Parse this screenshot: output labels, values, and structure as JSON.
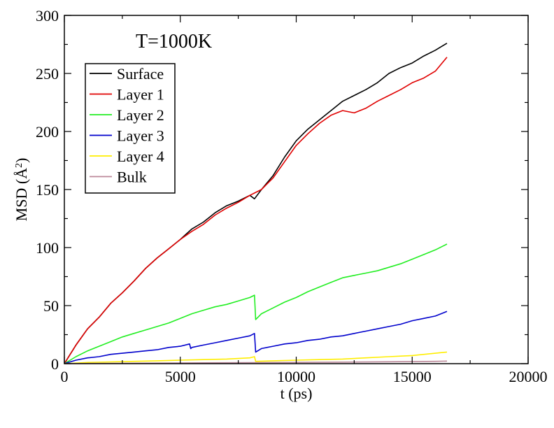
{
  "chart_data": {
    "type": "line",
    "annotation": "T=1000K",
    "xlabel": "t (ps)",
    "ylabel": "MSD (Å²)",
    "ylabel_base": "MSD (",
    "ylabel_unit": "Å",
    "ylabel_exp": "2",
    "ylabel_close": ")",
    "xlim": [
      0,
      20000
    ],
    "ylim": [
      0,
      300
    ],
    "xticks": [
      0,
      5000,
      10000,
      15000,
      20000
    ],
    "xtick_labels": [
      "0",
      "5000",
      "10000",
      "15000",
      "20000"
    ],
    "yticks": [
      0,
      50,
      100,
      150,
      200,
      250,
      300
    ],
    "ytick_labels": [
      "0",
      "50",
      "100",
      "150",
      "200",
      "250",
      "300"
    ],
    "grid": false,
    "legend_position": "top-left",
    "series": [
      {
        "name": "Surface",
        "color": "#000000",
        "x": [
          0,
          500,
          1000,
          1500,
          2000,
          2500,
          3000,
          3500,
          4000,
          4500,
          5000,
          5500,
          6000,
          6500,
          7000,
          7500,
          8000,
          8200,
          8500,
          9000,
          9500,
          10000,
          10500,
          11000,
          11500,
          12000,
          12500,
          13000,
          13500,
          14000,
          14500,
          15000,
          15500,
          16000,
          16500
        ],
        "y": [
          0,
          16,
          30,
          40,
          52,
          61,
          71,
          82,
          91,
          99,
          107,
          116,
          122,
          130,
          136,
          140,
          145,
          142,
          150,
          162,
          178,
          192,
          202,
          210,
          218,
          226,
          231,
          236,
          242,
          250,
          255,
          259,
          265,
          270,
          276
        ]
      },
      {
        "name": "Layer 1",
        "color": "#e00000",
        "x": [
          0,
          500,
          1000,
          1500,
          2000,
          2500,
          3000,
          3500,
          4000,
          4500,
          5000,
          5500,
          6000,
          6500,
          7000,
          7500,
          8000,
          8200,
          8500,
          9000,
          9500,
          10000,
          10500,
          11000,
          11500,
          12000,
          12500,
          13000,
          13500,
          14000,
          14500,
          15000,
          15500,
          16000,
          16500
        ],
        "y": [
          0,
          16,
          30,
          40,
          52,
          61,
          71,
          82,
          91,
          99,
          107,
          114,
          120,
          128,
          134,
          139,
          145,
          147,
          150,
          160,
          174,
          188,
          198,
          207,
          214,
          218,
          216,
          220,
          226,
          231,
          236,
          242,
          246,
          252,
          264
        ]
      },
      {
        "name": "Layer 2",
        "color": "#22ee22",
        "x": [
          0,
          500,
          1000,
          1500,
          2000,
          2500,
          3000,
          3500,
          4000,
          4500,
          5000,
          5500,
          6000,
          6500,
          7000,
          7500,
          8000,
          8200,
          8250,
          8500,
          9000,
          9500,
          10000,
          10500,
          11000,
          11500,
          12000,
          12500,
          13000,
          13500,
          14000,
          14500,
          15000,
          15500,
          16000,
          16500
        ],
        "y": [
          0,
          6,
          11,
          15,
          19,
          23,
          26,
          29,
          32,
          35,
          39,
          43,
          46,
          49,
          51,
          54,
          57,
          59,
          38,
          43,
          48,
          53,
          57,
          62,
          66,
          70,
          74,
          76,
          78,
          80,
          83,
          86,
          90,
          94,
          98,
          103
        ]
      },
      {
        "name": "Layer 3",
        "color": "#0000cc",
        "x": [
          0,
          500,
          1000,
          1500,
          2000,
          2500,
          3000,
          3500,
          4000,
          4500,
          5000,
          5400,
          5450,
          5500,
          6000,
          6500,
          7000,
          7500,
          8000,
          8200,
          8250,
          8500,
          9000,
          9500,
          10000,
          10500,
          11000,
          11500,
          12000,
          12500,
          13000,
          13500,
          14000,
          14500,
          15000,
          15500,
          16000,
          16500
        ],
        "y": [
          0,
          3,
          5,
          6,
          8,
          9,
          10,
          11,
          12,
          14,
          15,
          17,
          13,
          14,
          16,
          18,
          20,
          22,
          24,
          26,
          10,
          13,
          15,
          17,
          18,
          20,
          21,
          23,
          24,
          26,
          28,
          30,
          32,
          34,
          37,
          39,
          41,
          45
        ]
      },
      {
        "name": "Layer 4",
        "color": "#ffee00",
        "x": [
          0,
          1000,
          2000,
          3000,
          4000,
          5000,
          6000,
          7000,
          8000,
          8200,
          8250,
          9000,
          10000,
          11000,
          12000,
          13000,
          14000,
          15000,
          16000,
          16500
        ],
        "y": [
          0,
          1,
          1.5,
          2,
          2.5,
          3,
          3.5,
          4,
          5,
          6,
          2,
          2.5,
          3,
          3.5,
          4,
          5,
          6,
          7,
          9,
          10
        ]
      },
      {
        "name": "Bulk",
        "color": "#bb8899",
        "x": [
          0,
          2000,
          4000,
          6000,
          8000,
          10000,
          12000,
          14000,
          16000,
          16500
        ],
        "y": [
          0,
          0.3,
          0.5,
          0.7,
          0.9,
          1.1,
          1.3,
          1.6,
          2.0,
          2.2
        ]
      }
    ]
  }
}
